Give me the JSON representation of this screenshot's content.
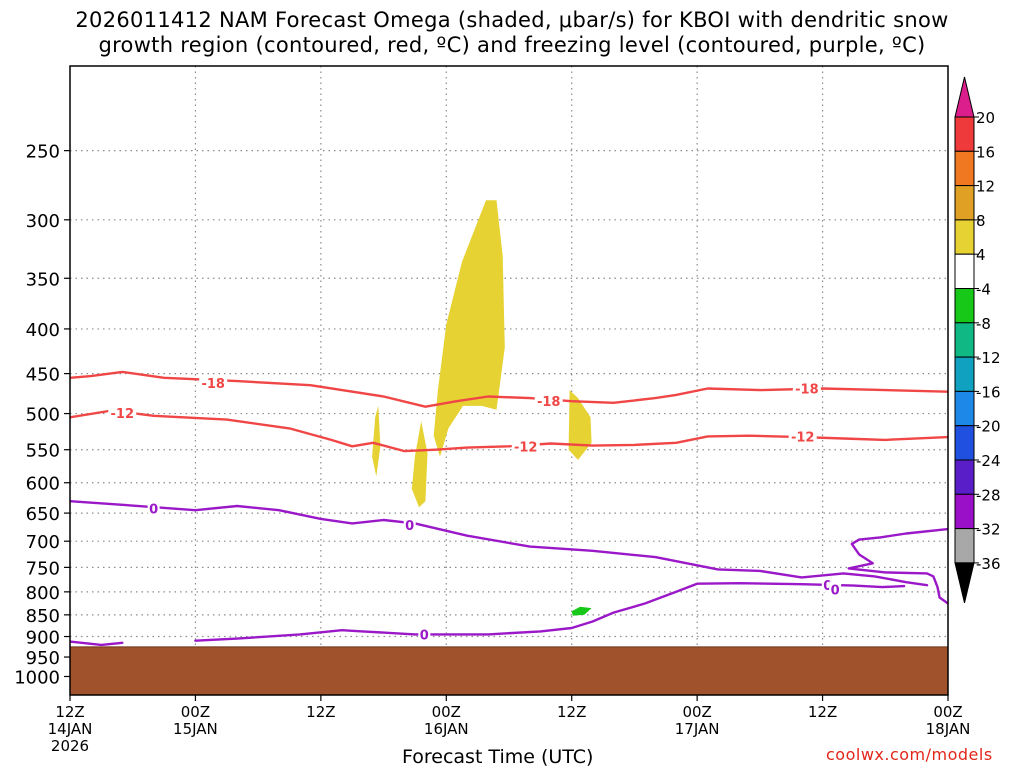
{
  "title": {
    "line1": "2026011412 NAM Forecast Omega (shaded, μbar/s) for KBOI with dendritic snow",
    "line2": "growth region (contoured, red, ºC) and freezing level (contoured, purple, ºC)"
  },
  "credit": "coolwx.com/models",
  "chart_data": {
    "type": "contour",
    "title": "2026011412 NAM Forecast Omega (shaded, μbar/s) for KBOI with dendritic snow growth region (contoured, red, ºC) and freezing level (contoured, purple, ºC)",
    "xlabel": "Forecast Time (UTC)",
    "ylabel": "",
    "x_unit": "forecast hour",
    "xlim": [
      0,
      84
    ],
    "ylim_hpa": [
      1050,
      200
    ],
    "y_scale": "log",
    "grid": true,
    "x_ticks": [
      {
        "hour": 0,
        "l1": "12Z",
        "l2": "14JAN",
        "l3": "2026"
      },
      {
        "hour": 12,
        "l1": "00Z",
        "l2": "15JAN",
        "l3": ""
      },
      {
        "hour": 24,
        "l1": "12Z",
        "l2": "",
        "l3": ""
      },
      {
        "hour": 36,
        "l1": "00Z",
        "l2": "16JAN",
        "l3": ""
      },
      {
        "hour": 48,
        "l1": "12Z",
        "l2": "",
        "l3": ""
      },
      {
        "hour": 60,
        "l1": "00Z",
        "l2": "17JAN",
        "l3": ""
      },
      {
        "hour": 72,
        "l1": "12Z",
        "l2": "",
        "l3": ""
      },
      {
        "hour": 84,
        "l1": "00Z",
        "l2": "18JAN",
        "l3": ""
      }
    ],
    "y_ticks": [
      250,
      300,
      350,
      400,
      450,
      500,
      550,
      600,
      650,
      700,
      750,
      800,
      850,
      900,
      950,
      1000
    ],
    "colorbar": {
      "levels": [
        20,
        16,
        12,
        8,
        4,
        -4,
        -8,
        -12,
        -16,
        -20,
        -24,
        -28,
        -32,
        -36
      ],
      "colors": [
        "#dc1e8c",
        "#ee3a3a",
        "#f07820",
        "#e0a024",
        "#e6d232",
        "#ffffff",
        "#18c818",
        "#10b884",
        "#10a0c0",
        "#1e88e8",
        "#2050e0",
        "#5a1ec8",
        "#9a10c8",
        "#a8a8a8",
        "#000000"
      ]
    },
    "terrain": {
      "top_hpa": 925,
      "color": "#a0522d"
    },
    "shaded_regions": [
      {
        "level": 4,
        "color": "#e6d232",
        "points": [
          [
            35.2,
            470
          ],
          [
            36,
            395
          ],
          [
            37.5,
            335
          ],
          [
            39.8,
            285
          ],
          [
            40.8,
            285
          ],
          [
            41.4,
            330
          ],
          [
            41.6,
            420
          ],
          [
            40.8,
            495
          ],
          [
            39.4,
            490
          ],
          [
            37.6,
            490
          ],
          [
            36.2,
            520
          ],
          [
            35.4,
            560
          ],
          [
            34.8,
            530
          ]
        ]
      },
      {
        "level": 4,
        "color": "#e6d232",
        "points": [
          [
            32.7,
            610
          ],
          [
            33.0,
            560
          ],
          [
            33.6,
            510
          ],
          [
            34.2,
            555
          ],
          [
            34.0,
            630
          ],
          [
            33.4,
            640
          ]
        ]
      },
      {
        "level": 4,
        "color": "#e6d232",
        "points": [
          [
            28.9,
            560
          ],
          [
            29.2,
            505
          ],
          [
            29.5,
            490
          ],
          [
            29.7,
            545
          ],
          [
            29.3,
            590
          ]
        ]
      },
      {
        "level": 4,
        "color": "#e6d232",
        "points": [
          [
            47.7,
            550
          ],
          [
            47.8,
            470
          ],
          [
            48.6,
            480
          ],
          [
            49.8,
            505
          ],
          [
            49.9,
            540
          ],
          [
            48.6,
            565
          ]
        ]
      },
      {
        "level": -4,
        "color": "#18c818",
        "points": [
          [
            48.0,
            842
          ],
          [
            48.8,
            832
          ],
          [
            49.9,
            835
          ],
          [
            49.2,
            850
          ],
          [
            48.1,
            852
          ]
        ]
      }
    ],
    "series": [
      {
        "name": "-18",
        "color": "#f04646",
        "label_at": [
          [
            13.7,
            461
          ],
          [
            45.8,
            484
          ],
          [
            70.5,
            468
          ]
        ],
        "points": [
          [
            0,
            455
          ],
          [
            2,
            453
          ],
          [
            5,
            448
          ],
          [
            9,
            455
          ],
          [
            16,
            459
          ],
          [
            23,
            464
          ],
          [
            30,
            478
          ],
          [
            34,
            491
          ],
          [
            37,
            484
          ],
          [
            40,
            478
          ],
          [
            44,
            480
          ],
          [
            48,
            484
          ],
          [
            52,
            486
          ],
          [
            56,
            480
          ],
          [
            58,
            476
          ],
          [
            61,
            468
          ],
          [
            66,
            470
          ],
          [
            72,
            468
          ],
          [
            78,
            470
          ],
          [
            84,
            472
          ]
        ]
      },
      {
        "name": "-12",
        "color": "#f04646",
        "label_at": [
          [
            5.0,
            499
          ],
          [
            43.6,
            545
          ],
          [
            70.1,
            531
          ]
        ],
        "points": [
          [
            0,
            505
          ],
          [
            4,
            496
          ],
          [
            8,
            503
          ],
          [
            15,
            508
          ],
          [
            21,
            520
          ],
          [
            25,
            536
          ],
          [
            27,
            545
          ],
          [
            29,
            540
          ],
          [
            32,
            552
          ],
          [
            35,
            550
          ],
          [
            38,
            547
          ],
          [
            42,
            545
          ],
          [
            46,
            541
          ],
          [
            50,
            544
          ],
          [
            54,
            543
          ],
          [
            58,
            540
          ],
          [
            61,
            531
          ],
          [
            65,
            530
          ],
          [
            70,
            532
          ],
          [
            74,
            534
          ],
          [
            78,
            536
          ],
          [
            84,
            532
          ]
        ]
      },
      {
        "name": "0",
        "color": "#9a18c8",
        "label_at": [
          [
            8.0,
            642
          ],
          [
            32.5,
            671
          ],
          [
            72.5,
            786
          ]
        ],
        "points": [
          [
            0,
            630
          ],
          [
            5,
            636
          ],
          [
            12,
            645
          ],
          [
            16,
            638
          ],
          [
            20,
            645
          ],
          [
            24,
            660
          ],
          [
            27,
            668
          ],
          [
            30,
            662
          ],
          [
            33,
            668
          ],
          [
            38,
            690
          ],
          [
            44,
            710
          ],
          [
            50,
            718
          ],
          [
            56,
            730
          ],
          [
            62,
            754
          ],
          [
            66,
            757
          ],
          [
            70,
            770
          ],
          [
            74,
            762
          ],
          [
            77,
            768
          ],
          [
            80,
            780
          ],
          [
            82,
            786
          ]
        ]
      },
      {
        "name": "0",
        "color": "#9a18c8",
        "label_at": [
          [
            33.9,
            895
          ]
        ],
        "points": [
          [
            12,
            910
          ],
          [
            16,
            905
          ],
          [
            22,
            895
          ],
          [
            26,
            885
          ],
          [
            28,
            888
          ],
          [
            33,
            895
          ],
          [
            40,
            895
          ],
          [
            45,
            888
          ],
          [
            48,
            880
          ],
          [
            50,
            865
          ],
          [
            52,
            845
          ],
          [
            55,
            825
          ],
          [
            58,
            800
          ],
          [
            60,
            783
          ],
          [
            64,
            782
          ],
          [
            70,
            784
          ],
          [
            75,
            787
          ],
          [
            77.7,
            790
          ],
          [
            79.8,
            788
          ]
        ]
      },
      {
        "name": "0",
        "color": "#9a18c8",
        "label_at": [
          [
            73.2,
            795
          ]
        ],
        "points": [
          [
            84,
            678
          ],
          [
            80,
            686
          ],
          [
            77.5,
            693
          ],
          [
            75.5,
            697
          ],
          [
            74.8,
            705
          ],
          [
            75.5,
            725
          ],
          [
            76.8,
            742
          ],
          [
            74.5,
            752
          ],
          [
            78,
            760
          ],
          [
            82,
            762
          ],
          [
            82.6,
            768
          ],
          [
            83,
            790
          ],
          [
            83.2,
            812
          ],
          [
            84,
            825
          ]
        ]
      },
      {
        "name": "0",
        "color": "#9a18c8",
        "label_at": [],
        "points": [
          [
            0,
            912
          ],
          [
            3,
            920
          ],
          [
            5,
            915
          ]
        ]
      }
    ]
  }
}
